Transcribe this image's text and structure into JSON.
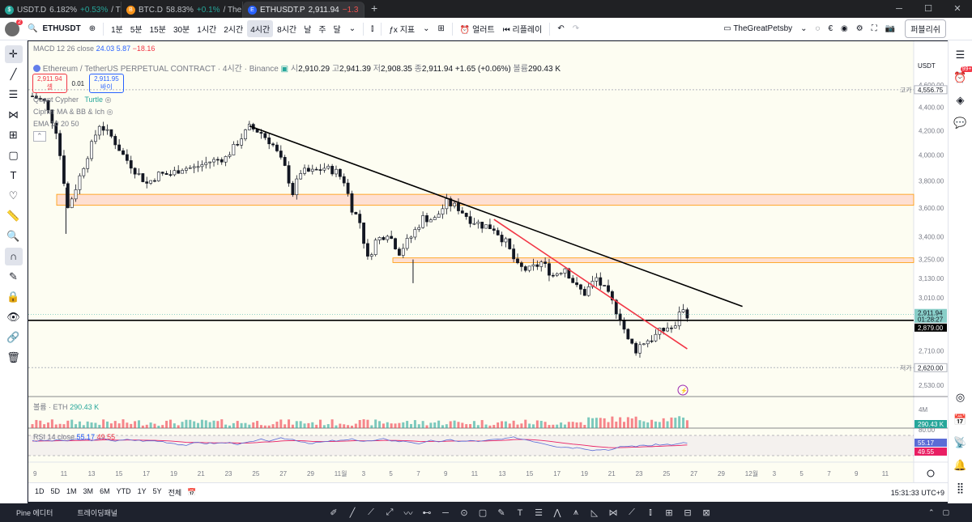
{
  "browser": {
    "tabs": [
      {
        "label": "USDT.D",
        "value": "6.182%",
        "change": "+0.53%",
        "rest": "/ T",
        "icon_color": "#26a69a",
        "icon_text": "$"
      },
      {
        "label": "BTC.D",
        "value": "58.83%",
        "change": "+0.1%",
        "rest": "/ The",
        "icon_color": "#f7931a",
        "icon_text": "B"
      },
      {
        "label": "ETHUSDT.P",
        "value": "2,911.94",
        "change": "−1.3",
        "rest": "",
        "icon_color": "#2962ff",
        "icon_text": "E"
      }
    ],
    "new_tab": "+"
  },
  "toolbar": {
    "symbol": "ETHUSDT",
    "intervals": [
      "1분",
      "5분",
      "15분",
      "30분",
      "1시간",
      "2시간",
      "4시간",
      "8시간",
      "날",
      "주",
      "달"
    ],
    "active_interval": "4시간",
    "indicators": "지표",
    "alert": "얼러트",
    "replay": "리플레이",
    "layout_name": "TheGreatPetsby",
    "publish": "퍼블리쉬",
    "avatar_badge": "2"
  },
  "chart": {
    "indicator_macd": "MACD 12 26 close",
    "macd_values": [
      "24.03",
      "5.87",
      "−18.16"
    ],
    "title": "Ethereum / TetherUS PERPETUAL CONTRACT · 4시간 · Binance",
    "ohlc": {
      "o": "2,910.29",
      "h": "2,941.39",
      "l": "2,908.35",
      "c": "2,911.94",
      "chg": "+1.65 (+0.06%)",
      "vol": "290.43 K"
    },
    "labels": {
      "o": "시",
      "h": "고",
      "l": "저",
      "c": "종",
      "vol": "볼륨"
    },
    "quote": {
      "sell": "2,911.94",
      "sell_label": "셀",
      "spread": "0.01",
      "buy": "2,911.95",
      "buy_label": "바이"
    },
    "overlay_legends": [
      "Quant Cypher",
      "Turtle",
      "Cipher MA & BB & Ich",
      "EMA 10 20 50"
    ],
    "currency": "USDT",
    "price_ticks": [
      {
        "v": 4600,
        "label": "4,600.00"
      },
      {
        "v": 4400,
        "label": "4,400.00"
      },
      {
        "v": 4200,
        "label": "4,200.00"
      },
      {
        "v": 4000,
        "label": "4,000.00"
      },
      {
        "v": 3800,
        "label": "3,800.00"
      },
      {
        "v": 3600,
        "label": "3,600.00"
      },
      {
        "v": 3400,
        "label": "3,400.00"
      },
      {
        "v": 3250,
        "label": "3,250.00"
      },
      {
        "v": 3130,
        "label": "3,130.00"
      },
      {
        "v": 3010,
        "label": "3,010.00"
      },
      {
        "v": 2710,
        "label": "2,710.00"
      },
      {
        "v": 2530,
        "label": "2,530.00"
      }
    ],
    "high_label": "고가",
    "high_value": "4,556.75",
    "low_label": "저가",
    "low_value": "2,620.00",
    "last_price": "2,911.94",
    "countdown": "01:28:27",
    "hline_price": "2,879.00",
    "x_ticks": [
      "9",
      "11",
      "13",
      "15",
      "17",
      "19",
      "21",
      "23",
      "25",
      "27",
      "29",
      "11월",
      "3",
      "5",
      "7",
      "9",
      "11",
      "13",
      "15",
      "17",
      "19",
      "21",
      "23",
      "25",
      "27",
      "29",
      "12월",
      "3",
      "5",
      "7",
      "9",
      "11"
    ],
    "volume_legend": "볼륨 · ETH",
    "volume_value": "290.43 K",
    "volume_axis": "4M",
    "rsi_legend": "RSI 14 close",
    "rsi_values": [
      "55.17",
      "49.55"
    ],
    "rsi_axis": "80.00"
  },
  "chart_data": {
    "type": "candlestick",
    "interval": "4h",
    "ylim": [
      2480,
      4640
    ],
    "path": [
      [
        0,
        4500
      ],
      [
        3,
        4450
      ],
      [
        6,
        4200
      ],
      [
        9,
        3600
      ],
      [
        11,
        3750
      ],
      [
        14,
        4000
      ],
      [
        17,
        4250
      ],
      [
        20,
        4150
      ],
      [
        23,
        4000
      ],
      [
        26,
        3880
      ],
      [
        29,
        3780
      ],
      [
        32,
        3850
      ],
      [
        35,
        3850
      ],
      [
        38,
        3900
      ],
      [
        41,
        3900
      ],
      [
        45,
        3950
      ],
      [
        49,
        3980
      ],
      [
        52,
        4100
      ],
      [
        55,
        4230
      ],
      [
        58,
        4180
      ],
      [
        61,
        4080
      ],
      [
        64,
        3900
      ],
      [
        66,
        3710
      ],
      [
        68,
        3870
      ],
      [
        71,
        3870
      ],
      [
        74,
        3900
      ],
      [
        77,
        3870
      ],
      [
        79,
        3800
      ],
      [
        81,
        3600
      ],
      [
        83,
        3500
      ],
      [
        85,
        3250
      ],
      [
        87,
        3370
      ],
      [
        90,
        3430
      ],
      [
        93,
        3300
      ],
      [
        96,
        3400
      ],
      [
        99,
        3530
      ],
      [
        102,
        3520
      ],
      [
        105,
        3640
      ],
      [
        108,
        3600
      ],
      [
        111,
        3520
      ],
      [
        114,
        3480
      ],
      [
        117,
        3460
      ],
      [
        120,
        3360
      ],
      [
        123,
        3200
      ],
      [
        126,
        3180
      ],
      [
        129,
        3230
      ],
      [
        132,
        3150
      ],
      [
        135,
        3200
      ],
      [
        138,
        3070
      ],
      [
        140,
        3040
      ],
      [
        143,
        3130
      ],
      [
        146,
        3020
      ],
      [
        149,
        2900
      ],
      [
        151,
        2760
      ],
      [
        153,
        2720
      ],
      [
        155,
        2760
      ],
      [
        158,
        2790
      ],
      [
        161,
        2840
      ],
      [
        163,
        2830
      ],
      [
        164,
        2940
      ],
      [
        166,
        2920
      ]
    ],
    "support_zones": [
      [
        3620,
        3700
      ],
      [
        3230,
        3260
      ]
    ],
    "horizontal_line": 2879,
    "trendlines": [
      {
        "from": [
          55,
          4240
        ],
        "to": [
          180,
          2960
        ],
        "color": "#000000"
      },
      {
        "from": [
          117,
          3520
        ],
        "to": [
          166,
          2720
        ],
        "color": "#f23645"
      }
    ],
    "rsi": [
      55.17,
      49.55
    ]
  },
  "bottombar": {
    "ranges": [
      "1D",
      "5D",
      "1M",
      "3M",
      "6M",
      "YTD",
      "1Y",
      "5Y",
      "전체"
    ],
    "clock": "15:31:33 UTC+9"
  },
  "panels": {
    "pine": "Pine 에디터",
    "trading": "트레이딩패널"
  }
}
